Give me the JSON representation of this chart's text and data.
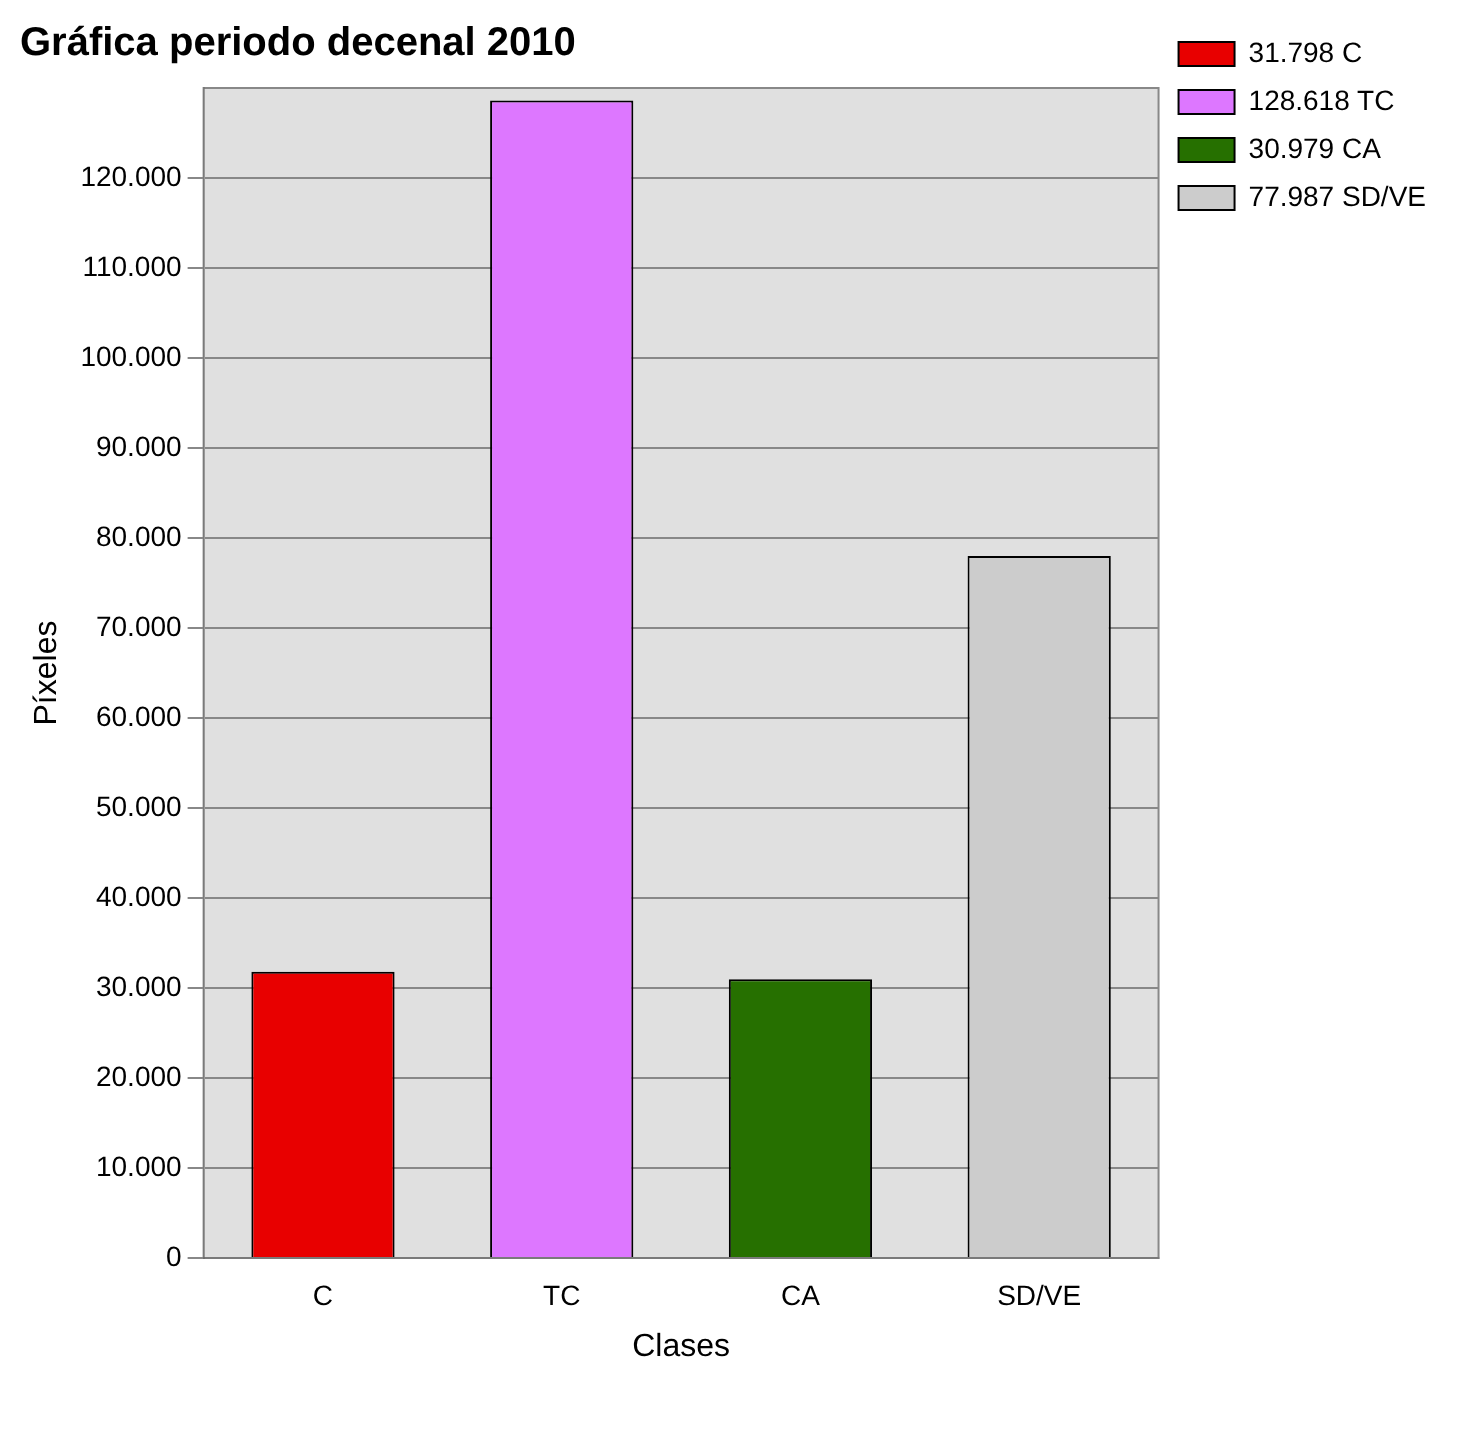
{
  "chart_data": {
    "type": "bar",
    "title": "Gráfica periodo decenal 2010",
    "xlabel": "Clases",
    "ylabel": "Píxeles",
    "categories": [
      "C",
      "TC",
      "CA",
      "SD/VE"
    ],
    "series": [
      {
        "name": "31.798 C",
        "color": "#e80000",
        "values": [
          31798,
          null,
          null,
          null
        ]
      },
      {
        "name": "128.618 TC",
        "color": "#dd77ff",
        "values": [
          null,
          128618,
          null,
          null
        ]
      },
      {
        "name": "30.979 CA",
        "color": "#267000",
        "values": [
          null,
          null,
          30979,
          null
        ]
      },
      {
        "name": "77.987 SD/VE",
        "color": "#cccccc",
        "values": [
          null,
          null,
          null,
          77987
        ]
      }
    ],
    "ylim": [
      0,
      130000
    ],
    "yticks": [
      {
        "value": 0,
        "label": "0"
      },
      {
        "value": 10000,
        "label": "10.000"
      },
      {
        "value": 20000,
        "label": "20.000"
      },
      {
        "value": 30000,
        "label": "30.000"
      },
      {
        "value": 40000,
        "label": "40.000"
      },
      {
        "value": 50000,
        "label": "50.000"
      },
      {
        "value": 60000,
        "label": "60.000"
      },
      {
        "value": 70000,
        "label": "70.000"
      },
      {
        "value": 80000,
        "label": "80.000"
      },
      {
        "value": 90000,
        "label": "90.000"
      },
      {
        "value": 100000,
        "label": "100.000"
      },
      {
        "value": 110000,
        "label": "110.000"
      },
      {
        "value": 120000,
        "label": "120.000"
      }
    ],
    "grid": "y",
    "legend": "top right"
  }
}
